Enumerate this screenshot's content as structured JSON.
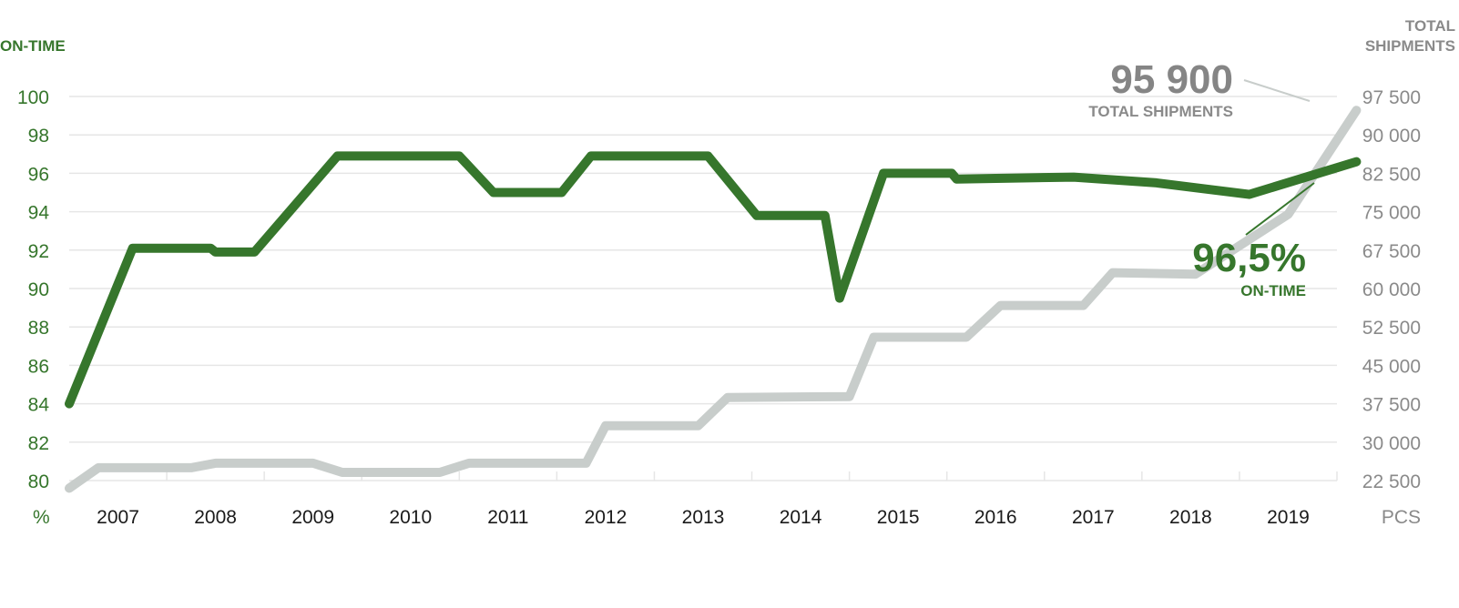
{
  "colors": {
    "on_time": "#36762c",
    "shipments": "#c8cdcb",
    "right_axis_text": "#8a8a8a",
    "callout_grey": "#858585",
    "grid": "#e6e6e6",
    "year_text": "#1a1a1a"
  },
  "left_axis": {
    "title": "ON-TIME",
    "unit": "%"
  },
  "right_axis": {
    "title_line1": "TOTAL",
    "title_line2": "SHIPMENTS",
    "unit": "PCS"
  },
  "callouts": {
    "shipments_value": "95 900",
    "shipments_label": "TOTAL SHIPMENTS",
    "on_time_value": "96,5%",
    "on_time_label": "ON-TIME"
  },
  "chart_data": {
    "type": "line",
    "categories": [
      "2007",
      "2008",
      "2009",
      "2010",
      "2011",
      "2012",
      "2013",
      "2014",
      "2015",
      "2016",
      "2017",
      "2018",
      "2019"
    ],
    "left_ylim": [
      80,
      100
    ],
    "left_ticks": [
      "80",
      "82",
      "84",
      "86",
      "88",
      "90",
      "92",
      "94",
      "96",
      "98",
      "100"
    ],
    "right_ylim": [
      22500,
      97500
    ],
    "right_ticks": [
      "22 500",
      "30 000",
      "37 500",
      "45 000",
      "52 500",
      "60 000",
      "67 500",
      "75 000",
      "82 500",
      "90 000",
      "97 500"
    ],
    "grid": true,
    "series": [
      {
        "key": "on_time",
        "axis": "left",
        "points": [
          [
            2006.5,
            84.0
          ],
          [
            2007.15,
            92.1
          ],
          [
            2007.95,
            92.1
          ],
          [
            2008.0,
            91.9
          ],
          [
            2008.4,
            91.9
          ],
          [
            2009.25,
            96.9
          ],
          [
            2010.5,
            96.9
          ],
          [
            2010.85,
            95.0
          ],
          [
            2011.55,
            95.0
          ],
          [
            2011.85,
            96.9
          ],
          [
            2013.05,
            96.9
          ],
          [
            2013.55,
            93.8
          ],
          [
            2014.25,
            93.8
          ],
          [
            2014.4,
            89.5
          ],
          [
            2014.85,
            96.0
          ],
          [
            2015.55,
            96.0
          ],
          [
            2015.6,
            95.7
          ],
          [
            2016.8,
            95.8
          ],
          [
            2017.65,
            95.5
          ],
          [
            2018.6,
            94.9
          ],
          [
            2019.7,
            96.6
          ]
        ]
      },
      {
        "key": "shipments",
        "axis": "right",
        "points": [
          [
            2006.5,
            21000
          ],
          [
            2006.8,
            25000
          ],
          [
            2007.75,
            25000
          ],
          [
            2008.0,
            25900
          ],
          [
            2009.0,
            25900
          ],
          [
            2009.3,
            24100
          ],
          [
            2010.3,
            24100
          ],
          [
            2010.6,
            25900
          ],
          [
            2011.8,
            25900
          ],
          [
            2012.0,
            33200
          ],
          [
            2012.95,
            33200
          ],
          [
            2013.25,
            38700
          ],
          [
            2014.5,
            38900
          ],
          [
            2014.75,
            50500
          ],
          [
            2015.7,
            50500
          ],
          [
            2016.05,
            56700
          ],
          [
            2016.9,
            56700
          ],
          [
            2017.2,
            63100
          ],
          [
            2018.05,
            62800
          ],
          [
            2019.0,
            74500
          ],
          [
            2019.7,
            94800
          ]
        ]
      }
    ]
  }
}
